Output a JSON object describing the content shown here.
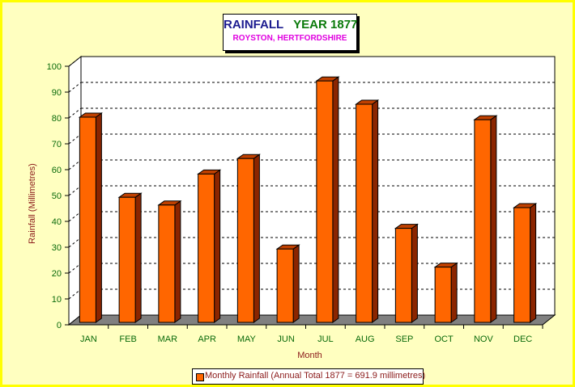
{
  "colors": {
    "bar_front": "#ff6600",
    "bar_side": "#8b2500",
    "bar_top": "#c04000",
    "floor": "#808080",
    "title_main": "#1b1b8f",
    "title_year": "#0a7a0a",
    "subtitle": "#e000e0",
    "tick_label": "#0a6a0a",
    "axis_label": "#8b1a1a"
  },
  "chart_data": {
    "type": "bar",
    "title": "RAINFALL",
    "title_year": "YEAR 1877",
    "subtitle": "ROYSTON, HERTFORDSHIRE",
    "xlabel": "Month",
    "ylabel": "Rainfall (Millimetres)",
    "categories": [
      "JAN",
      "FEB",
      "MAR",
      "APR",
      "MAY",
      "JUN",
      "JUL",
      "AUG",
      "SEP",
      "OCT",
      "NOV",
      "DEC"
    ],
    "series": [
      {
        "name": "Monthly Rainfall (Annual Total 1877 = 691.9 millimetres)",
        "values": [
          80,
          49,
          46,
          58,
          64,
          29,
          94,
          85,
          37,
          22,
          79,
          45
        ]
      }
    ],
    "ylim": [
      0,
      100
    ],
    "yticks": [
      0,
      10,
      20,
      30,
      40,
      50,
      60,
      70,
      80,
      90,
      100
    ],
    "grid": true,
    "legend_position": "bottom"
  }
}
